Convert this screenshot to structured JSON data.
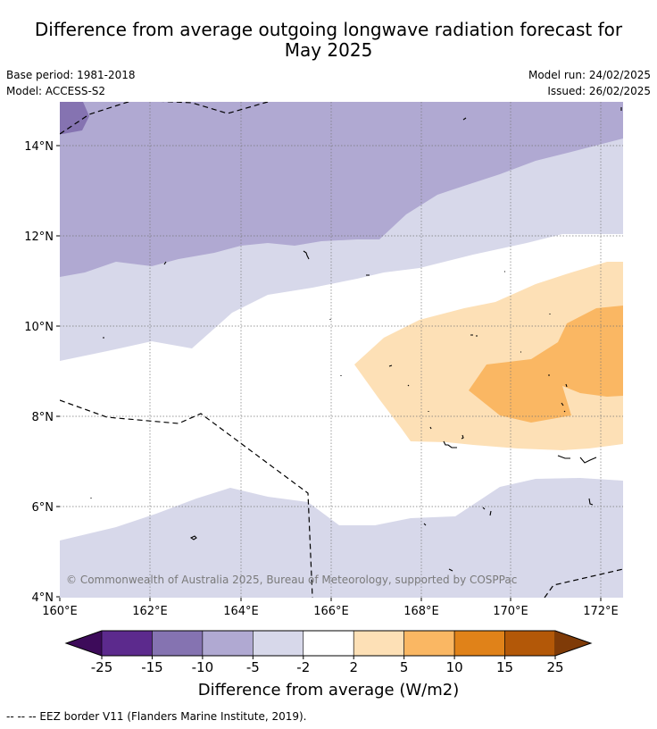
{
  "header": {
    "title_line1": "Difference from average outgoing longwave radiation forecast for",
    "title_line2": "May 2025",
    "base_period": "Base period: 1981-2018",
    "model": "Model: ACCESS-S2",
    "model_run": "Model run: 24/02/2025",
    "issued": "Issued: 26/02/2025"
  },
  "map": {
    "lat_labels": [
      "14°N",
      "12°N",
      "10°N",
      "8°N",
      "6°N",
      "4°N"
    ],
    "lon_labels": [
      "160°E",
      "162°E",
      "164°E",
      "166°E",
      "168°E",
      "170°E",
      "172°E"
    ],
    "copyright": "© Commonwealth of Australia 2025, Bureau of Meteorology, supported by COSPPac"
  },
  "colorbar": {
    "tick_labels": [
      "-25",
      "-15",
      "-10",
      "-5",
      "-2",
      "2",
      "5",
      "10",
      "15",
      "25"
    ],
    "title": "Difference from average (W/m2)",
    "colors": {
      "below_min": "#3d0b5a",
      "bins": [
        "#5c2a8d",
        "#8573b1",
        "#b0a9d2",
        "#d7d8ea",
        "#ffffff",
        "#fde0b6",
        "#fab763",
        "#e08219",
        "#b35808"
      ],
      "above_max": "#7f3b08"
    }
  },
  "footnote": "--  --  -- EEZ border V11 (Flanders Marine Institute, 2019)."
}
